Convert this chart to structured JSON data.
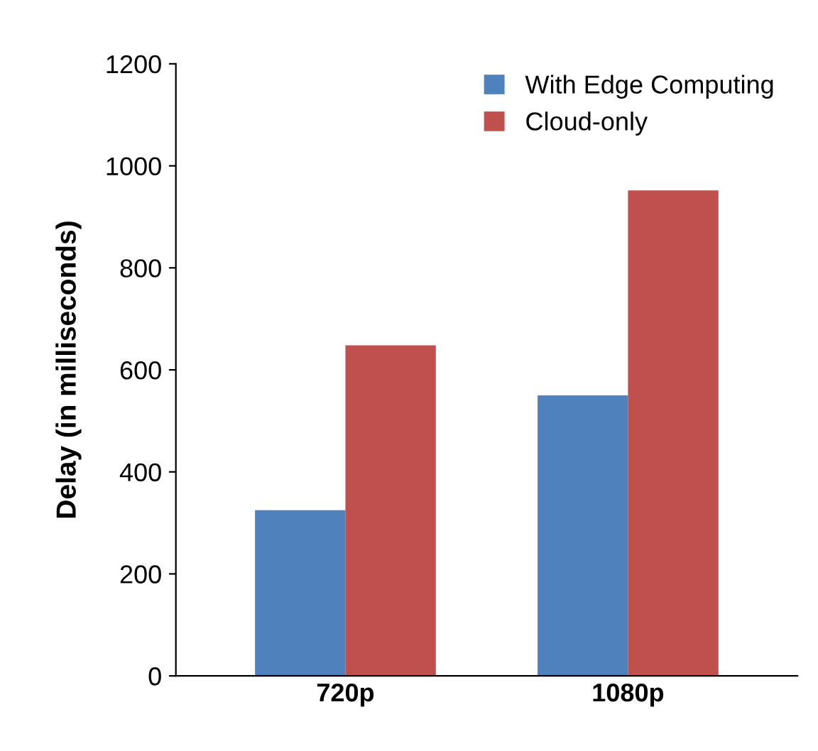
{
  "chart_data": {
    "type": "bar",
    "ylabel": "Delay (in milliseconds)",
    "categories": [
      "720p",
      "1080p"
    ],
    "series": [
      {
        "name": "With Edge Computing",
        "color": "#4f81bd",
        "values": [
          325,
          550
        ]
      },
      {
        "name": "Cloud-only",
        "color": "#c0504d",
        "values": [
          648,
          952
        ]
      }
    ],
    "ylim": [
      0,
      1200
    ],
    "yticks": [
      0,
      200,
      400,
      600,
      800,
      1000,
      1200
    ],
    "grid": false,
    "legend": "top right"
  }
}
